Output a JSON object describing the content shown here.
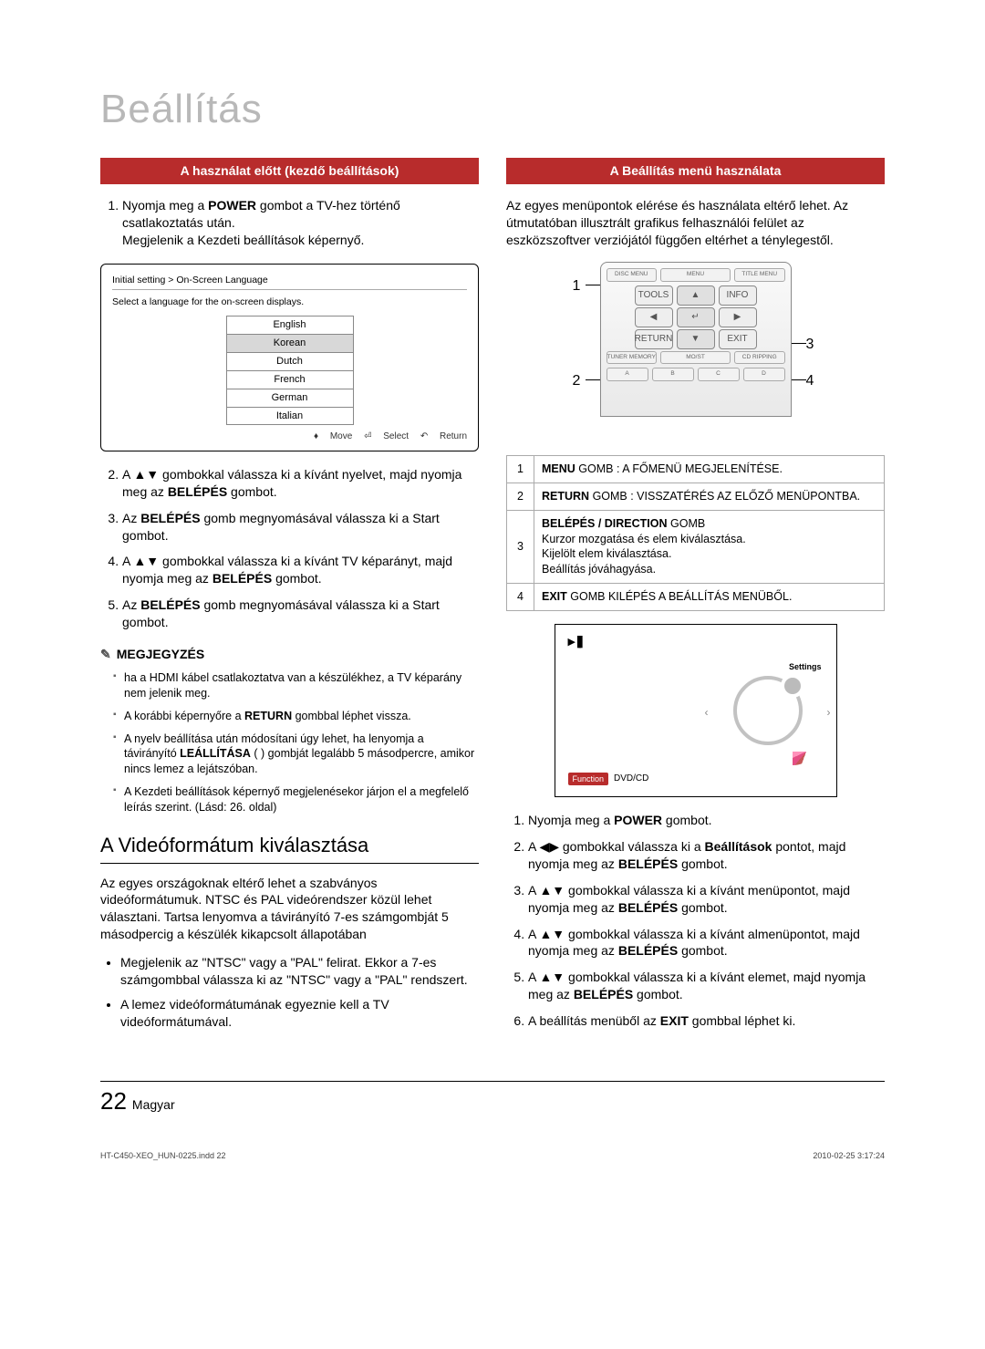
{
  "title": "Beállítás",
  "left": {
    "header": "A használat előtt (kezdő beállítások)",
    "step1": "Nyomja meg a <b>POWER</b> gombot a TV-hez történő csatlakoztatás után.",
    "step1b": "Megjelenik a Kezdeti beállítások képernyő.",
    "langDialog": {
      "crumb": "Initial setting > On-Screen Language",
      "subtitle": "Select a language for the on-screen displays.",
      "items": [
        "English",
        "Korean",
        "Dutch",
        "French",
        "German",
        "Italian"
      ],
      "selectedIndex": 1,
      "move": "Move",
      "select": "Select",
      "return": "Return"
    },
    "step2": "A ▲▼ gombokkal válassza ki a kívánt nyelvet, majd nyomja meg az <b>BELÉPÉS</b> gombot.",
    "step3": "Az <b>BELÉPÉS</b> gomb megnyomásával válassza ki a Start gombot.",
    "step4": "A ▲▼ gombokkal válassza ki a kívánt TV képarányt, majd nyomja meg az <b>BELÉPÉS</b> gombot.",
    "step5": "Az <b>BELÉPÉS</b> gomb megnyomásával válassza ki a Start gombot.",
    "noteTitle": "MEGJEGYZÉS",
    "notes": [
      "ha a HDMI kábel csatlakoztatva van a készülékhez, a TV képarány nem jelenik meg.",
      "A korábbi képernyőre a <b>RETURN</b> gombbal léphet vissza.",
      "A nyelv beállítása után módosítani úgy lehet, ha lenyomja a távirányító <b>LEÁLLÍTÁSA</b> ( ) gombját legalább 5 másodpercre, amikor nincs lemez a lejátszóban.",
      "A Kezdeti beállítások képernyő megjelenésekor járjon el a megfelelő leírás szerint. (Lásd: 26. oldal)"
    ],
    "vidTitle": "A Videóformátum kiválasztása",
    "vidPara": "Az egyes országoknak eltérő lehet a szabványos videóformátumuk. NTSC és PAL videórendszer közül lehet választani. Tartsa lenyomva a távirányító 7-es számgombját 5 másodpercig a készülék kikapcsolt állapotában",
    "vidBullets": [
      "Megjelenik az \"NTSC\" vagy a \"PAL\" felirat. Ekkor a 7-es számgombbal válassza ki az \"NTSC\" vagy a \"PAL\" rendszert.",
      "A lemez videóformátumának egyeznie kell a TV videóformátumával."
    ]
  },
  "right": {
    "header": "A Beállítás menü használata",
    "intro": "Az egyes menüpontok elérése és használata eltérő lehet. Az útmutatóban illusztrált grafikus felhasználói felület az eszközszoftver verziójától függően eltérhet a ténylegestől.",
    "remote": {
      "row1": [
        "DISC MENU",
        "MENU",
        "TITLE MENU"
      ],
      "row2": [
        "TOOLS",
        "▲",
        "INFO"
      ],
      "row3": [
        "◀",
        "↵",
        "▶"
      ],
      "row4": [
        "RETURN",
        "▼",
        "EXIT"
      ],
      "row5": [
        "TUNER MEMORY",
        "MO/ST",
        "CD RIPPING"
      ],
      "row6": [
        "A",
        "B",
        "C",
        "D"
      ]
    },
    "desc": [
      {
        "n": "1",
        "html": "<b>MENU</b> GOMB : A FŐMENÜ MEGJELENÍTÉSE."
      },
      {
        "n": "2",
        "html": "<b>RETURN</b> GOMB : VISSZATÉRÉS AZ ELŐZŐ MENÜPONTBA."
      },
      {
        "n": "3",
        "html": "<b>BELÉPÉS / DIRECTION</b> GOMB<br>Kurzor mozgatása és elem kiválasztása.<br>Kijelölt elem kiválasztása.<br>Beállítás jóváhagyása."
      },
      {
        "n": "4",
        "html": "<b>EXIT</b> GOMB KILÉPÉS A BEÁLLÍTÁS MENÜBŐL."
      }
    ],
    "screen": {
      "settings": "Settings",
      "function": "Function",
      "dvd": "DVD/CD"
    },
    "steps": [
      "Nyomja meg a <b>POWER</b> gombot.",
      "A ◀▶ gombokkal válassza ki a <b>Beállítások</b> pontot, majd nyomja meg az <b>BELÉPÉS</b> gombot.",
      "A ▲▼ gombokkal válassza ki a kívánt menüpontot, majd nyomja meg az <b>BELÉPÉS</b> gombot.",
      "A ▲▼ gombokkal válassza ki a kívánt almenüpontot, majd nyomja meg az <b>BELÉPÉS</b> gombot.",
      "A ▲▼ gombokkal válassza ki a kívánt elemet, majd nyomja meg az <b>BELÉPÉS</b> gombot.",
      "A beállítás menüből az <b>EXIT</b> gombbal léphet ki."
    ]
  },
  "pageNum": "22",
  "pageLang": "Magyar",
  "footerLeft": "HT-C450-XEO_HUN-0225.indd   22",
  "footerRight": "2010-02-25     3:17:24"
}
